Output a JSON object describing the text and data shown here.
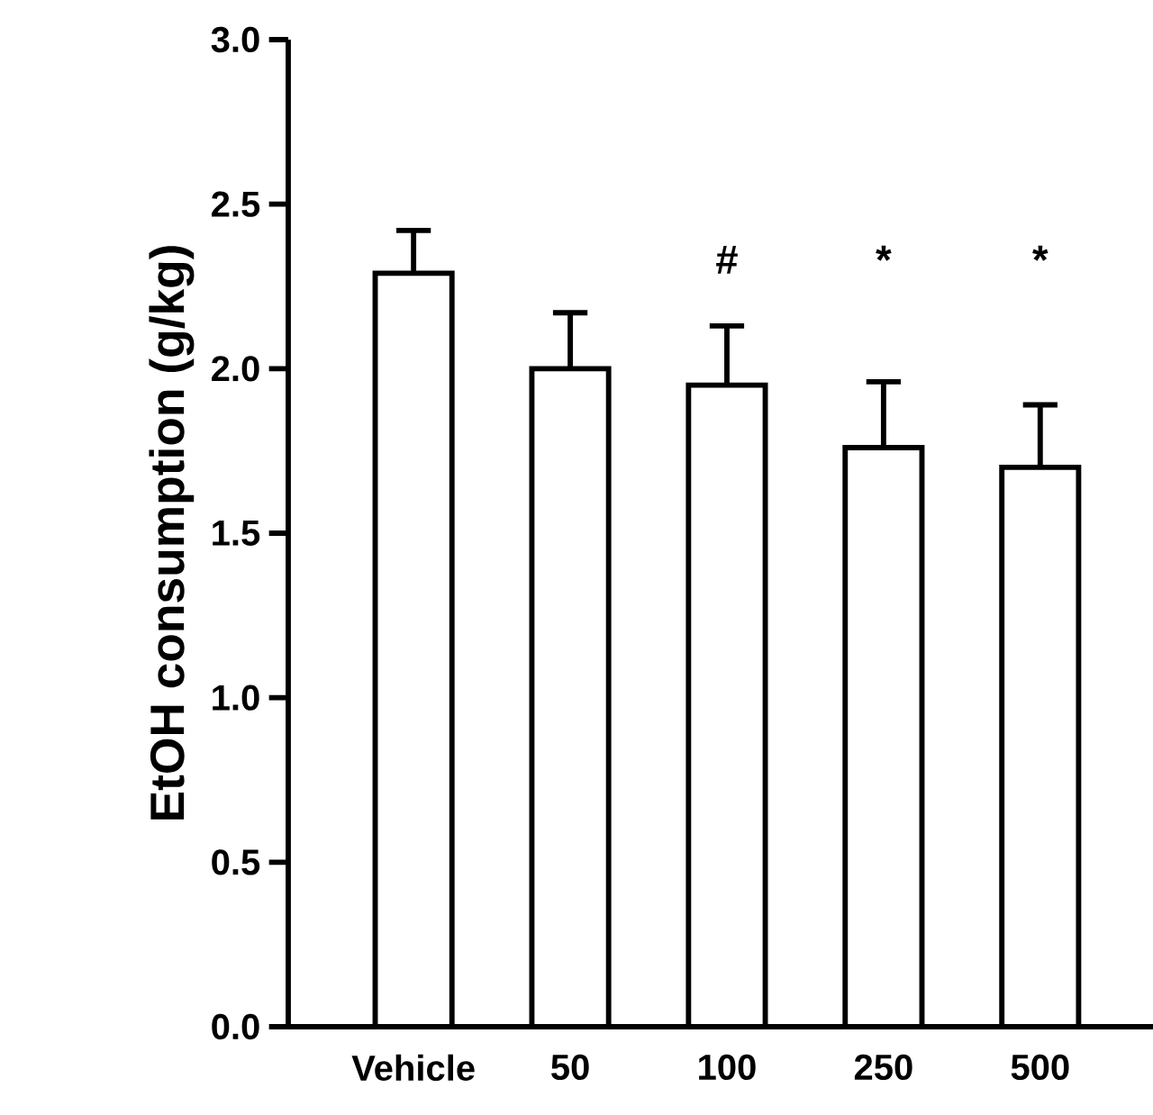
{
  "chart_data": {
    "type": "bar",
    "ylabel": "EtOH consumption (g/kg)",
    "categories": [
      "Vehicle",
      "50",
      "100",
      "250",
      "500"
    ],
    "values": [
      2.29,
      2.0,
      1.95,
      1.76,
      1.7
    ],
    "errors": [
      [
        2.29,
        2.42
      ],
      [
        2.0,
        2.17
      ],
      [
        1.95,
        2.13
      ],
      [
        1.76,
        1.96
      ],
      [
        1.7,
        1.89
      ]
    ],
    "color": "#ffffff",
    "ylim": [
      0,
      3
    ],
    "yticks": [
      {
        "value": 0,
        "label": "0.0"
      },
      0.5,
      {
        "value": 1,
        "label": "1.0"
      },
      1.5,
      {
        "value": 2,
        "label": "2.0"
      },
      2.5,
      {
        "value": 3,
        "label": "3.0"
      }
    ],
    "annotations": [
      "#",
      "*",
      "*"
    ]
  }
}
